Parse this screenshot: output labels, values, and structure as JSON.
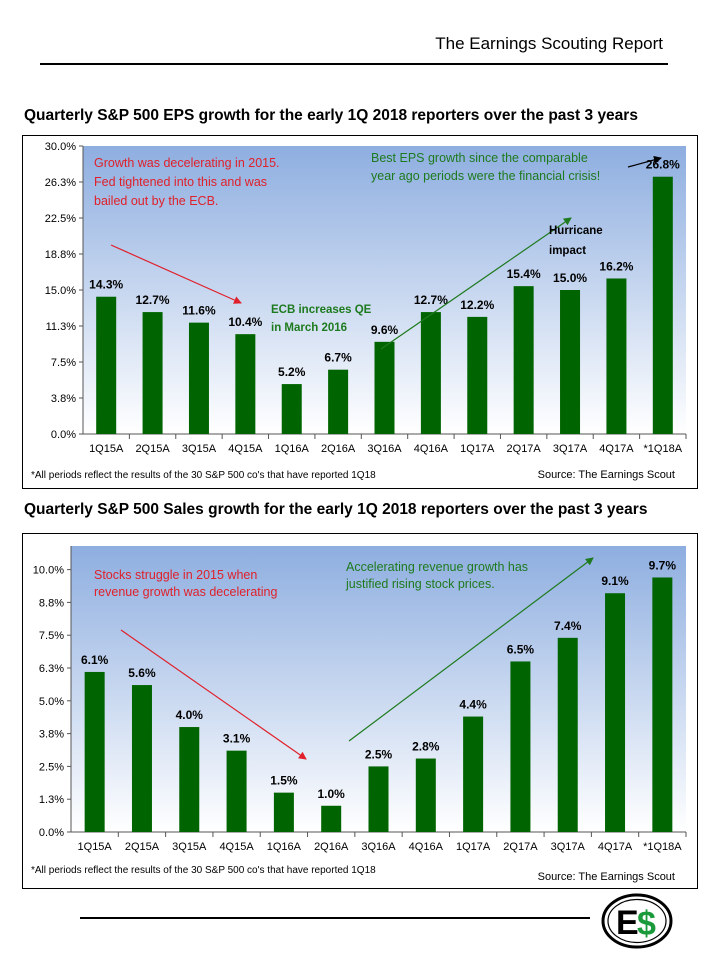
{
  "header": {
    "title": "The Earnings Scouting Report"
  },
  "colors": {
    "bar": "#006400",
    "red_note": "#e0202a",
    "green_note": "#1e7a1e",
    "bg_top": "#8eaee0",
    "bg_bottom": "#ffffff"
  },
  "chart_data": [
    {
      "type": "bar",
      "title": "Quarterly S&P 500 EPS growth for the early 1Q 2018 reporters over the past 3 years",
      "categories": [
        "1Q15A",
        "2Q15A",
        "3Q15A",
        "4Q15A",
        "1Q16A",
        "2Q16A",
        "3Q16A",
        "4Q16A",
        "1Q17A",
        "2Q17A",
        "3Q17A",
        "4Q17A",
        "*1Q18A"
      ],
      "values": [
        14.3,
        12.7,
        11.6,
        10.4,
        5.2,
        6.7,
        9.6,
        12.7,
        12.2,
        15.4,
        15.0,
        16.2,
        26.8
      ],
      "value_labels": [
        "14.3%",
        "12.7%",
        "11.6%",
        "10.4%",
        "5.2%",
        "6.7%",
        "9.6%",
        "12.7%",
        "12.2%",
        "15.4%",
        "15.0%",
        "16.2%",
        "26.8%"
      ],
      "ylim": [
        0,
        30
      ],
      "yticks": [
        0,
        3.75,
        7.5,
        11.25,
        15,
        18.75,
        22.5,
        26.25,
        30
      ],
      "ytick_labels": [
        "0.0%",
        "3.8%",
        "7.5%",
        "11.3%",
        "15.0%",
        "18.8%",
        "22.5%",
        "26.3%",
        "30.0%"
      ],
      "grid": false,
      "footnote": "*All periods  reflect the results of the 30 S&P 500 co's that have reported  1Q18",
      "source": "Source: The Earnings Scout",
      "annotations": {
        "red": [
          "Growth was decelerating in 2015.",
          "Fed tightened into this and was",
          "bailed out by the ECB."
        ],
        "ecb": [
          "ECB increases QE",
          "in March 2016"
        ],
        "best": [
          "Best EPS growth since the comparable",
          "year ago periods were the financial crisis!"
        ],
        "hurricane": [
          "Hurricane",
          "impact"
        ]
      }
    },
    {
      "type": "bar",
      "title": "Quarterly S&P 500 Sales growth for the early 1Q 2018 reporters over the past 3 years",
      "categories": [
        "1Q15A",
        "2Q15A",
        "3Q15A",
        "4Q15A",
        "1Q16A",
        "2Q16A",
        "3Q16A",
        "4Q16A",
        "1Q17A",
        "2Q17A",
        "3Q17A",
        "4Q17A",
        "*1Q18A"
      ],
      "values": [
        6.1,
        5.6,
        4.0,
        3.1,
        1.5,
        1.0,
        2.5,
        2.8,
        4.4,
        6.5,
        7.4,
        9.1,
        9.7
      ],
      "value_labels": [
        "6.1%",
        "5.6%",
        "4.0%",
        "3.1%",
        "1.5%",
        "1.0%",
        "2.5%",
        "2.8%",
        "4.4%",
        "6.5%",
        "7.4%",
        "9.1%",
        "9.7%"
      ],
      "ylim": [
        0,
        10.9
      ],
      "yticks": [
        0,
        1.25,
        2.5,
        3.75,
        5,
        6.25,
        7.5,
        8.75,
        10
      ],
      "ytick_labels": [
        "0.0%",
        "1.3%",
        "2.5%",
        "3.8%",
        "5.0%",
        "6.3%",
        "7.5%",
        "8.8%",
        "10.0%"
      ],
      "grid": false,
      "footnote": "*All periods  reflect the results of the 30 S&P 500 co's that have reported  1Q18",
      "source": "Source: The Earnings Scout",
      "annotations": {
        "red": [
          "Stocks struggle in 2015 when",
          "revenue growth was decelerating"
        ],
        "green": [
          "Accelerating revenue growth has",
          "justified  rising stock prices."
        ]
      }
    }
  ],
  "logo": {
    "text": "E$"
  }
}
